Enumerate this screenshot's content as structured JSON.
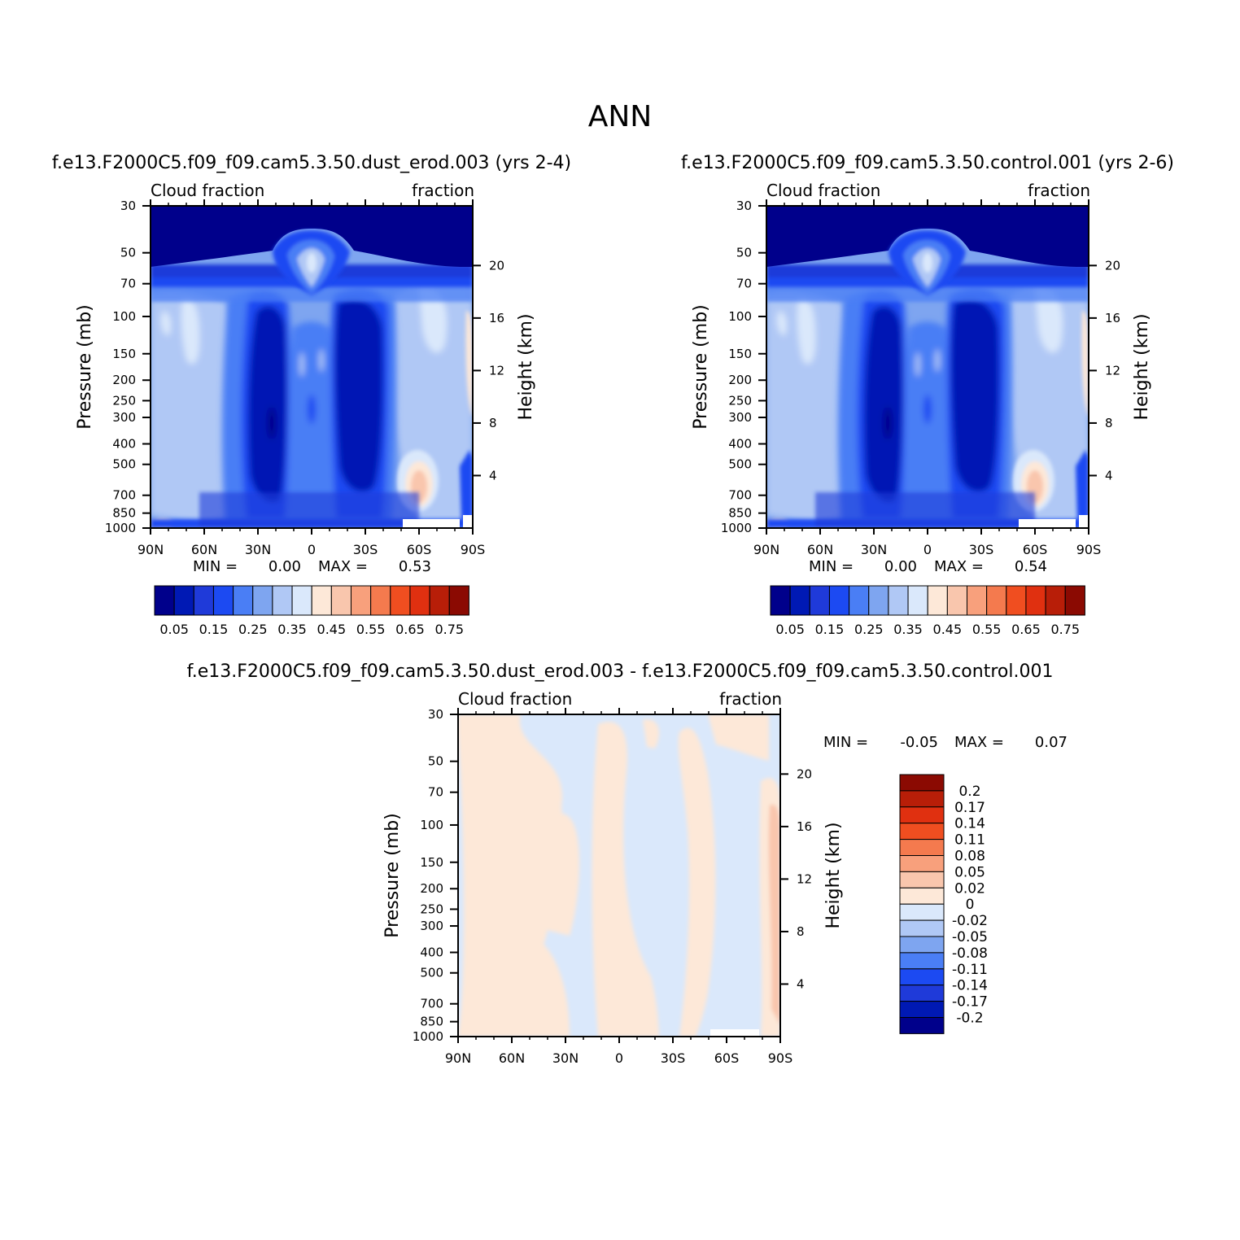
{
  "figure": {
    "title": "ANN"
  },
  "colors": {
    "level_colors": [
      "#00008b",
      "#0019b4",
      "#1f3ad9",
      "#1c4af2",
      "#4a7ef5",
      "#7ea5f0",
      "#b0c8f5",
      "#dae8fb",
      "#fde8d8",
      "#f9c6ad",
      "#f8a07c",
      "#f47a4e",
      "#f04e20",
      "#e03010",
      "#b81e08",
      "#8b0a02"
    ],
    "diff_colors": [
      "#00008b",
      "#0019b4",
      "#1f3ad9",
      "#1c4af2",
      "#4a7ef5",
      "#7ea5f0",
      "#b0c8f5",
      "#dae8fb",
      "#fde8d8",
      "#f9c6ad",
      "#f8a07c",
      "#f47a4e",
      "#f04e20",
      "#e03010",
      "#b81e08",
      "#8b0a02"
    ]
  },
  "panels": [
    {
      "id": "model",
      "case_title": "f.e13.F2000C5.f09_f09.cam5.3.50.dust_erod.003 (yrs 2-4)",
      "left_label": "Cloud fraction",
      "right_label": "fraction",
      "ylabel": "Pressure (mb)",
      "y2label": "Height (km)",
      "min_label": "MIN =",
      "min_value": "0.00",
      "max_label": "MAX =",
      "max_value": "0.53"
    },
    {
      "id": "control",
      "case_title": "f.e13.F2000C5.f09_f09.cam5.3.50.control.001 (yrs 2-6)",
      "left_label": "Cloud fraction",
      "right_label": "fraction",
      "ylabel": "Pressure (mb)",
      "y2label": "Height (km)",
      "min_label": "MIN =",
      "min_value": "0.00",
      "max_label": "MAX =",
      "max_value": "0.54"
    },
    {
      "id": "difference",
      "case_title": "f.e13.F2000C5.f09_f09.cam5.3.50.dust_erod.003 - f.e13.F2000C5.f09_f09.cam5.3.50.control.001",
      "left_label": "Cloud fraction",
      "right_label": "fraction",
      "ylabel": "Pressure (mb)",
      "y2label": "Height (km)",
      "min_label": "MIN =",
      "min_value": "-0.05",
      "max_label": "MAX =",
      "max_value": "0.07"
    }
  ],
  "chart_data": [
    {
      "type": "heatmap",
      "title": "f.e13.F2000C5.f09_f09.cam5.3.50.dust_erod.003 (yrs 2-4)",
      "xlabel": "",
      "ylabel": "Pressure (mb)",
      "y2label": "Height (km)",
      "x_ticks": [
        "90N",
        "60N",
        "30N",
        "0",
        "30S",
        "60S",
        "90S"
      ],
      "y_ticks": [
        "30",
        "50",
        "70",
        "100",
        "150",
        "200",
        "250",
        "300",
        "400",
        "500",
        "700",
        "850",
        "1000"
      ],
      "y2_ticks": [
        "20",
        "16",
        "12",
        "8",
        "4"
      ],
      "x_range": [
        90,
        -90
      ],
      "y_range": [
        1000,
        30
      ],
      "y_scale": "log",
      "levels": [
        "0.05",
        "0.15",
        "0.25",
        "0.35",
        "0.45",
        "0.55",
        "0.65",
        "0.75"
      ],
      "colorbar": "horizontal-bottom",
      "min": 0.0,
      "max": 0.53
    },
    {
      "type": "heatmap",
      "title": "f.e13.F2000C5.f09_f09.cam5.3.50.control.001 (yrs 2-6)",
      "xlabel": "",
      "ylabel": "Pressure (mb)",
      "y2label": "Height (km)",
      "x_ticks": [
        "90N",
        "60N",
        "30N",
        "0",
        "30S",
        "60S",
        "90S"
      ],
      "y_ticks": [
        "30",
        "50",
        "70",
        "100",
        "150",
        "200",
        "250",
        "300",
        "400",
        "500",
        "700",
        "850",
        "1000"
      ],
      "y2_ticks": [
        "20",
        "16",
        "12",
        "8",
        "4"
      ],
      "x_range": [
        90,
        -90
      ],
      "y_range": [
        1000,
        30
      ],
      "y_scale": "log",
      "levels": [
        "0.05",
        "0.15",
        "0.25",
        "0.35",
        "0.45",
        "0.55",
        "0.65",
        "0.75"
      ],
      "colorbar": "horizontal-bottom",
      "min": 0.0,
      "max": 0.54
    },
    {
      "type": "heatmap",
      "title": "f.e13.F2000C5.f09_f09.cam5.3.50.dust_erod.003 - f.e13.F2000C5.f09_f09.cam5.3.50.control.001",
      "xlabel": "",
      "ylabel": "Pressure (mb)",
      "y2label": "Height (km)",
      "x_ticks": [
        "90N",
        "60N",
        "30N",
        "0",
        "30S",
        "60S",
        "90S"
      ],
      "y_ticks": [
        "30",
        "50",
        "70",
        "100",
        "150",
        "200",
        "250",
        "300",
        "400",
        "500",
        "700",
        "850",
        "1000"
      ],
      "y2_ticks": [
        "20",
        "16",
        "12",
        "8",
        "4"
      ],
      "x_range": [
        90,
        -90
      ],
      "y_range": [
        1000,
        30
      ],
      "y_scale": "log",
      "levels": [
        "0.2",
        "0.17",
        "0.14",
        "0.11",
        "0.08",
        "0.05",
        "0.02",
        "0",
        "-0.02",
        "-0.05",
        "-0.08",
        "-0.11",
        "-0.14",
        "-0.17",
        "-0.2"
      ],
      "colorbar": "vertical-right",
      "min": -0.05,
      "max": 0.07
    }
  ]
}
